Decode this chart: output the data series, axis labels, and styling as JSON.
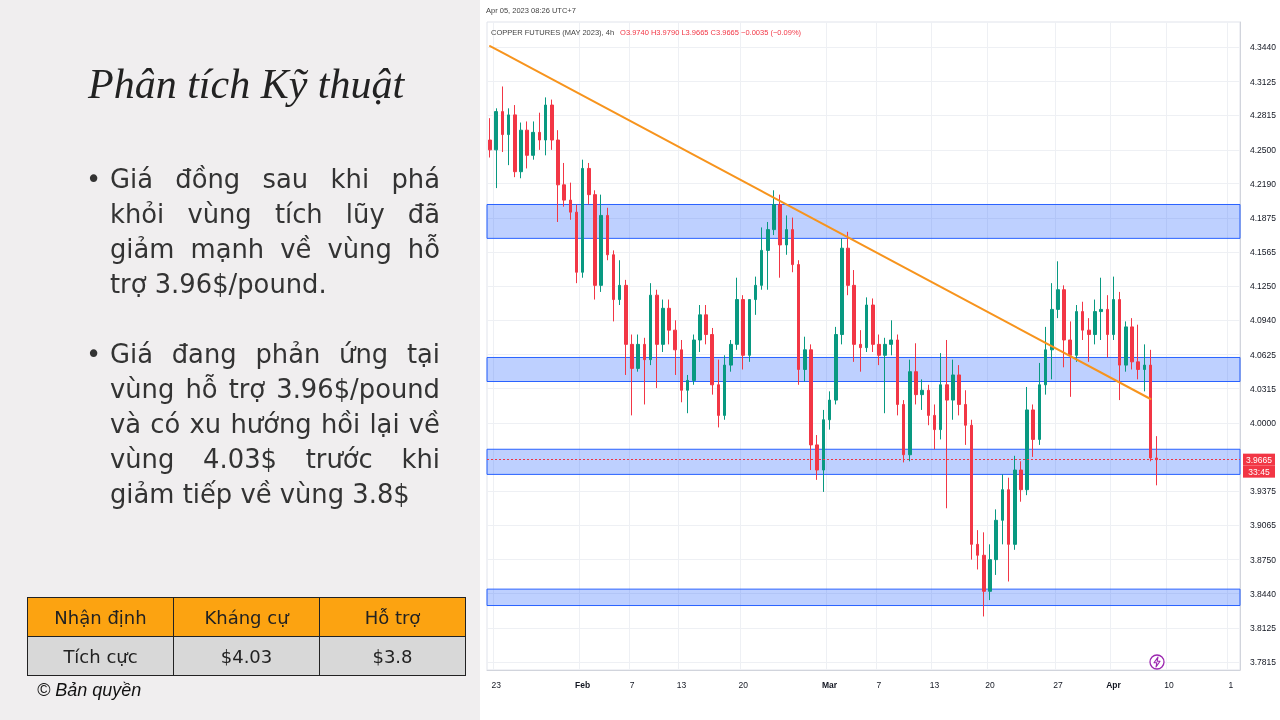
{
  "chart_data": {
    "type": "candlestick",
    "title": "Phân tích Kỹ thuật",
    "subtitle": "COPPER FUTURES (MAY 2023), 4h",
    "categories": [
      null,
      "23",
      null,
      null,
      null,
      null,
      null,
      null,
      null,
      null,
      null,
      null,
      null,
      null,
      null,
      "Feb",
      null,
      null,
      null,
      null,
      null,
      null,
      null,
      "7",
      null,
      null,
      null,
      null,
      null,
      null,
      null,
      "13",
      null,
      null,
      null,
      null,
      null,
      null,
      null,
      null,
      null,
      "20",
      null,
      null,
      null,
      null,
      null,
      null,
      null,
      null,
      null,
      null,
      null,
      null,
      null,
      "Mar",
      null,
      null,
      null,
      null,
      null,
      null,
      null,
      "7",
      null,
      null,
      null,
      null,
      null,
      null,
      null,
      null,
      "13",
      null,
      null,
      null,
      null,
      null,
      null,
      null,
      null,
      "20",
      null,
      null,
      null,
      null,
      null,
      null,
      null,
      null,
      null,
      null,
      "27",
      null,
      null,
      null,
      null,
      null,
      null,
      null,
      null,
      "Apr",
      null,
      null,
      null,
      null,
      null,
      null,
      null,
      null,
      "10",
      null,
      null,
      null,
      null,
      null,
      null,
      null,
      null,
      null,
      "1",
      null
    ],
    "series": [
      {
        "ohlc": [
          [
            4.259,
            4.279,
            4.243,
            4.25
          ],
          [
            4.25,
            4.288,
            4.215,
            4.285
          ],
          [
            4.285,
            4.308,
            4.248,
            4.264
          ],
          [
            4.264,
            4.288,
            4.236,
            4.282
          ],
          [
            4.282,
            4.291,
            4.225,
            4.23
          ],
          [
            4.23,
            4.275,
            4.224,
            4.268
          ],
          [
            4.268,
            4.276,
            4.233,
            4.245
          ],
          [
            4.245,
            4.276,
            4.241,
            4.266
          ],
          [
            4.266,
            4.284,
            4.25,
            4.259
          ],
          [
            4.259,
            4.298,
            4.245,
            4.291
          ],
          [
            4.291,
            4.296,
            4.25,
            4.259
          ],
          [
            4.259,
            4.268,
            4.184,
            4.218
          ],
          [
            4.218,
            4.238,
            4.198,
            4.204
          ],
          [
            4.204,
            4.22,
            4.186,
            4.193
          ],
          [
            4.193,
            4.2,
            4.128,
            4.138
          ],
          [
            4.138,
            4.241,
            4.133,
            4.233
          ],
          [
            4.233,
            4.238,
            4.2,
            4.209
          ],
          [
            4.209,
            4.213,
            4.113,
            4.126
          ],
          [
            4.126,
            4.209,
            4.12,
            4.19
          ],
          [
            4.19,
            4.197,
            4.149,
            4.154
          ],
          [
            4.154,
            4.158,
            4.093,
            4.113
          ],
          [
            4.113,
            4.149,
            4.108,
            4.126
          ],
          [
            4.126,
            4.131,
            4.044,
            4.072
          ],
          [
            4.072,
            4.081,
            4.007,
            4.05
          ],
          [
            4.05,
            4.081,
            4.047,
            4.072
          ],
          [
            4.072,
            4.078,
            4.017,
            4.058
          ],
          [
            4.058,
            4.128,
            4.053,
            4.117
          ],
          [
            4.117,
            4.122,
            4.032,
            4.072
          ],
          [
            4.072,
            4.113,
            4.065,
            4.105
          ],
          [
            4.105,
            4.113,
            4.072,
            4.085
          ],
          [
            4.085,
            4.094,
            4.044,
            4.067
          ],
          [
            4.067,
            4.076,
            4.019,
            4.03
          ],
          [
            4.03,
            4.044,
            4.009,
            4.039
          ],
          [
            4.039,
            4.081,
            4.035,
            4.076
          ],
          [
            4.076,
            4.108,
            4.065,
            4.099
          ],
          [
            4.099,
            4.108,
            4.072,
            4.081
          ],
          [
            4.081,
            4.087,
            4.026,
            4.035
          ],
          [
            4.035,
            4.058,
            3.996,
            4.007
          ],
          [
            4.007,
            4.062,
            4.003,
            4.053
          ],
          [
            4.053,
            4.076,
            4.047,
            4.072
          ],
          [
            4.072,
            4.133,
            4.067,
            4.113
          ],
          [
            4.113,
            4.117,
            4.049,
            4.062
          ],
          [
            4.062,
            4.113,
            4.056,
            4.113
          ],
          [
            4.113,
            4.134,
            4.099,
            4.126
          ],
          [
            4.126,
            4.179,
            4.122,
            4.158
          ],
          [
            4.158,
            4.184,
            4.122,
            4.177
          ],
          [
            4.177,
            4.213,
            4.172,
            4.2
          ],
          [
            4.2,
            4.209,
            4.133,
            4.163
          ],
          [
            4.163,
            4.19,
            4.154,
            4.177
          ],
          [
            4.177,
            4.188,
            4.138,
            4.145
          ],
          [
            4.145,
            4.149,
            4.035,
            4.049
          ],
          [
            4.049,
            4.079,
            4.038,
            4.067
          ],
          [
            4.067,
            4.072,
            3.957,
            3.98
          ],
          [
            3.98,
            3.989,
            3.948,
            3.957
          ],
          [
            3.957,
            4.012,
            3.937,
            4.003
          ],
          [
            4.003,
            4.029,
            3.994,
            4.021
          ],
          [
            4.021,
            4.088,
            4.017,
            4.081
          ],
          [
            4.081,
            4.169,
            4.072,
            4.16
          ],
          [
            4.16,
            4.175,
            4.117,
            4.126
          ],
          [
            4.126,
            4.14,
            4.056,
            4.072
          ],
          [
            4.072,
            4.085,
            4.047,
            4.069
          ],
          [
            4.069,
            4.115,
            4.065,
            4.108
          ],
          [
            4.108,
            4.114,
            4.065,
            4.072
          ],
          [
            4.072,
            4.081,
            4.053,
            4.062
          ],
          [
            4.062,
            4.078,
            4.009,
            4.072
          ],
          [
            4.072,
            4.094,
            4.062,
            4.076
          ],
          [
            4.076,
            4.081,
            4.007,
            4.017
          ],
          [
            4.017,
            4.021,
            3.964,
            3.971
          ],
          [
            3.971,
            4.058,
            3.965,
            4.047
          ],
          [
            4.047,
            4.073,
            4.017,
            4.026
          ],
          [
            4.026,
            4.04,
            4.012,
            4.03
          ],
          [
            4.03,
            4.035,
            3.998,
            4.007
          ],
          [
            4.007,
            4.017,
            3.976,
            3.994
          ],
          [
            3.994,
            4.064,
            3.985,
            4.035
          ],
          [
            4.035,
            4.076,
            3.922,
            4.021
          ],
          [
            4.021,
            4.058,
            4.003,
            4.044
          ],
          [
            4.044,
            4.053,
            4.007,
            4.017
          ],
          [
            4.017,
            4.03,
            3.98,
            3.998
          ],
          [
            3.998,
            4.003,
            3.875,
            3.889
          ],
          [
            3.889,
            3.902,
            3.866,
            3.879
          ],
          [
            3.879,
            3.9,
            3.823,
            3.846
          ],
          [
            3.846,
            3.889,
            3.838,
            3.875
          ],
          [
            3.875,
            3.921,
            3.861,
            3.911
          ],
          [
            3.911,
            3.953,
            3.889,
            3.939
          ],
          [
            3.939,
            3.95,
            3.855,
            3.889
          ],
          [
            3.889,
            3.97,
            3.884,
            3.957
          ],
          [
            3.957,
            3.965,
            3.928,
            3.939
          ],
          [
            3.939,
            4.033,
            3.934,
            4.012
          ],
          [
            4.012,
            4.017,
            3.969,
            3.985
          ],
          [
            3.985,
            4.055,
            3.98,
            4.035
          ],
          [
            4.035,
            4.088,
            4.026,
            4.067
          ],
          [
            4.067,
            4.128,
            4.04,
            4.104
          ],
          [
            4.104,
            4.148,
            4.096,
            4.122
          ],
          [
            4.122,
            4.126,
            4.051,
            4.076
          ],
          [
            4.076,
            4.093,
            4.024,
            4.062
          ],
          [
            4.062,
            4.108,
            4.056,
            4.102
          ],
          [
            4.102,
            4.111,
            4.076,
            4.085
          ],
          [
            4.085,
            4.096,
            4.056,
            4.081
          ],
          [
            4.081,
            4.113,
            4.072,
            4.102
          ],
          [
            4.102,
            4.133,
            4.076,
            4.104
          ],
          [
            4.104,
            4.117,
            4.06,
            4.081
          ],
          [
            4.081,
            4.134,
            4.076,
            4.113
          ],
          [
            4.113,
            4.12,
            4.021,
            4.053
          ],
          [
            4.053,
            4.093,
            4.047,
            4.088
          ],
          [
            4.088,
            4.096,
            4.049,
            4.056
          ],
          [
            4.056,
            4.09,
            4.04,
            4.049
          ],
          [
            4.049,
            4.072,
            4.029,
            4.053
          ],
          [
            4.053,
            4.067,
            3.965,
            3.968
          ],
          [
            3.968,
            3.988,
            3.943,
            3.9665
          ],
          null,
          null,
          null,
          null,
          null,
          null,
          null,
          null,
          null,
          null,
          null,
          null,
          null
        ]
      },
      {
        "type": "line",
        "color": "#f7941d",
        "values": [
          4.345,
          null,
          null,
          null,
          null,
          null,
          null,
          null,
          null,
          null,
          null,
          null,
          null,
          null,
          null,
          null,
          null,
          null,
          null,
          null,
          null,
          null,
          null,
          null,
          null,
          null,
          null,
          null,
          null,
          null,
          null,
          null,
          null,
          null,
          null,
          null,
          null,
          null,
          null,
          null,
          null,
          null,
          null,
          null,
          null,
          null,
          null,
          null,
          null,
          null,
          null,
          null,
          null,
          null,
          null,
          null,
          null,
          null,
          null,
          null,
          null,
          null,
          null,
          null,
          null,
          null,
          null,
          null,
          null,
          null,
          null,
          null,
          null,
          null,
          null,
          null,
          null,
          null,
          null,
          null,
          null,
          null,
          null,
          null,
          null,
          null,
          null,
          null,
          null,
          null,
          null,
          null,
          null,
          null,
          null,
          null,
          null,
          null,
          null,
          null,
          null,
          null,
          null,
          null,
          null,
          null,
          null,
          4.022,
          null,
          null,
          null,
          null,
          null,
          null,
          null,
          null,
          null,
          null,
          null,
          null,
          null,
          null
        ]
      }
    ],
    "ylim": [
      3.774,
      4.367
    ],
    "yticks": [
      3.7815,
      3.8125,
      {
        "value": 3.844,
        "label": "3.8440"
      },
      {
        "value": 3.875,
        "label": "3.8750"
      },
      3.9065,
      3.9375,
      {
        "value": 4,
        "label": "4.0000"
      },
      4.0315,
      4.0625,
      {
        "value": 4.094,
        "label": "4.0940"
      },
      {
        "value": 4.125,
        "label": "4.1250"
      },
      4.1565,
      4.1875,
      {
        "value": 4.219,
        "label": "4.2190"
      },
      {
        "value": 4.25,
        "label": "4.2500"
      },
      4.2815,
      4.3125,
      {
        "value": 4.344,
        "label": "4.3440"
      }
    ],
    "grid": true,
    "ref_lines": [
      {
        "axis": "y",
        "value": 3.9665,
        "label": "3.9665",
        "color": "#f23645",
        "line_style": "dotted"
      }
    ],
    "bands": [
      {
        "axis": "y",
        "from": 4.169,
        "to": 4.2,
        "color": "#2962ff"
      },
      {
        "axis": "y",
        "from": 4.038,
        "to": 4.06,
        "color": "#2962ff"
      },
      {
        "axis": "y",
        "from": 3.953,
        "to": 3.976,
        "color": "#2962ff"
      },
      {
        "axis": "y",
        "from": 3.833,
        "to": 3.848,
        "color": "#2962ff"
      }
    ],
    "annotations": [
      "• Giá đồng sau khi phá khỏi vùng tích lũy đã giảm mạnh về vùng hỗ trợ 3.96$/pound.",
      "• Giá đang phản ứng tại vùng hỗ trợ 3.96$/pound và có xu hướng hồi lại về vùng 4.03$ trước khi giảm tiếp về vùng 3.8$",
      "Nhận định",
      "Kháng cự",
      "Hỗ trợ",
      "Tích cực",
      "$4.03",
      "$3.8",
      "© Bản quyền",
      "Apr 05, 2023 08:26 UTC+7",
      "O3.9740 H3.9790 L3.9665 C3.9665 −0.0035 (−0.09%)",
      "33:45"
    ]
  }
}
